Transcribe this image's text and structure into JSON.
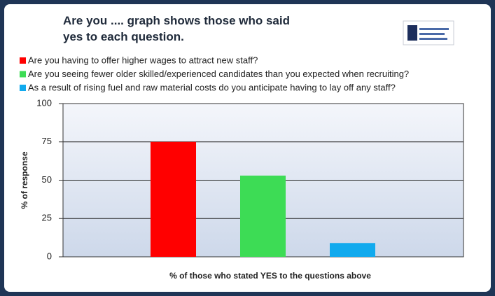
{
  "chart_data": {
    "type": "bar",
    "title": "Are you .... graph shows those who said yes to each question.",
    "series": [
      {
        "name": "Are you having to offer higher wages to attract new staff?",
        "color": "#ff0000",
        "values": [
          75
        ]
      },
      {
        "name": "Are you seeing fewer older skilled/experienced candidates than you expected when recruiting?",
        "color": "#3ddc55",
        "values": [
          53
        ]
      },
      {
        "name": "As a result of rising fuel and raw material costs do you anticipate having to lay off any staff?",
        "color": "#11aaee",
        "values": [
          9
        ]
      }
    ],
    "y_label": "% of response",
    "x_label": "% of those who stated YES to the questions above",
    "ylim": [
      0,
      100
    ],
    "yticks": [
      0,
      25,
      50,
      75,
      100
    ],
    "grid": true,
    "legend": "top"
  }
}
